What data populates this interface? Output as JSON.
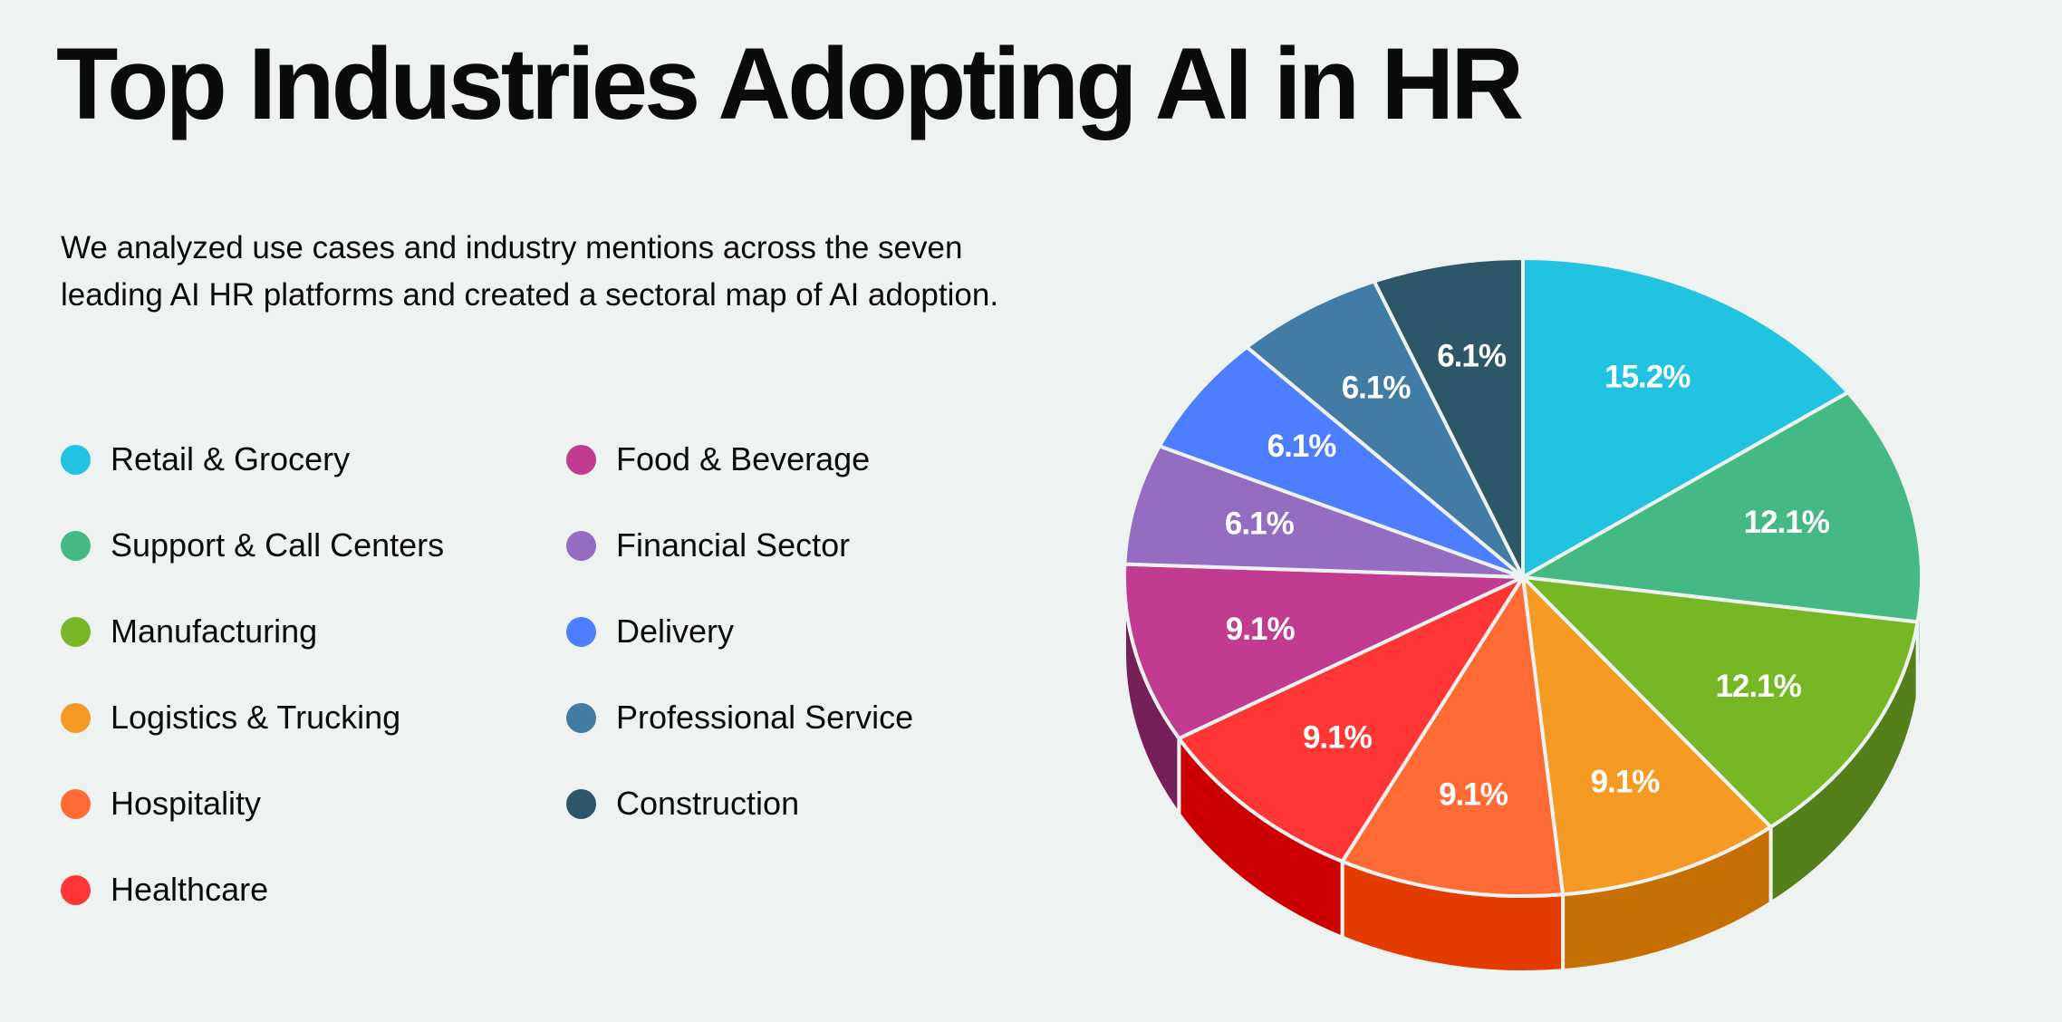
{
  "title": "Top Industries Adopting AI in HR",
  "description": "We analyzed use cases and industry mentions across the seven leading AI HR platforms and created a sectoral map of AI adoption.",
  "chart_data": {
    "type": "pie",
    "style": "3d",
    "title": "Top Industries Adopting AI in HR",
    "legend_position": "left",
    "slices": [
      {
        "label": "Retail & Grocery",
        "value": 15.2,
        "display": "15.2%",
        "color": "#22C3E0",
        "side_color": "#1795AB"
      },
      {
        "label": "Support & Call Centers",
        "value": 12.1,
        "display": "12.1%",
        "color": "#44B984",
        "side_color": "#2E8A61"
      },
      {
        "label": "Manufacturing",
        "value": 12.1,
        "display": "12.1%",
        "color": "#77B725",
        "side_color": "#53801A"
      },
      {
        "label": "Logistics & Trucking",
        "value": 9.1,
        "display": "9.1%",
        "color": "#F59A23",
        "side_color": "#C67004"
      },
      {
        "label": "Hospitality",
        "value": 9.1,
        "display": "9.1%",
        "color": "#FF6B35",
        "side_color": "#E43C00"
      },
      {
        "label": "Healthcare",
        "value": 9.1,
        "display": "9.1%",
        "color": "#FF3636",
        "side_color": "#CC0000"
      },
      {
        "label": "Food & Beverage",
        "value": 9.1,
        "display": "9.1%",
        "color": "#C13B90",
        "side_color": "#76205A"
      },
      {
        "label": "Financial Sector",
        "value": 6.1,
        "display": "6.1%",
        "color": "#946CC1",
        "side_color": "#5E3F85"
      },
      {
        "label": "Delivery",
        "value": 6.1,
        "display": "6.1%",
        "color": "#4D7EFF",
        "side_color": "#2A52C0"
      },
      {
        "label": "Professional Service",
        "value": 6.1,
        "display": "6.1%",
        "color": "#427BA3",
        "side_color": "#2A5575"
      },
      {
        "label": "Construction",
        "value": 6.1,
        "display": "6.1%",
        "color": "#2D5668",
        "side_color": "#1B3642"
      }
    ]
  }
}
